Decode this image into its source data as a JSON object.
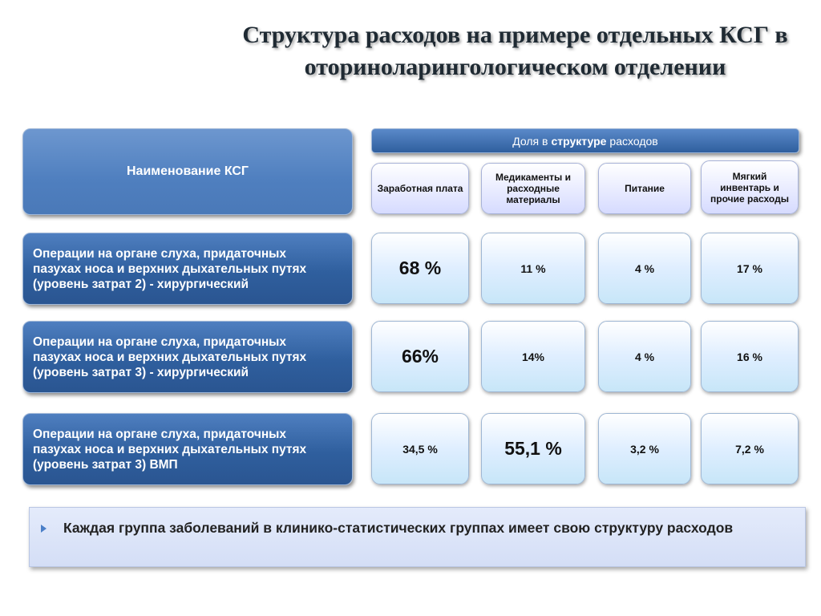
{
  "title": {
    "line1": "Структура расходов на примере отдельных КСГ в",
    "line2": "оториноларингологическом отделении"
  },
  "table": {
    "name_header": "Наименование КСГ",
    "share_header": {
      "prefix": "Доля в",
      "bold": "структуре",
      "suffix": "расходов"
    },
    "columns": [
      "Заработная плата",
      "Медикаменты и расходные материалы",
      "Питание",
      "Мягкий инвентарь и прочие расходы"
    ],
    "rows": [
      {
        "label_lines": [
          "Операции на органе слуха, придаточных",
          "пазухах носа и верхних дыхательных путях",
          "(уровень затрат 2) - хирургический"
        ],
        "values": [
          "68 %",
          "11 %",
          "4 %",
          "17 %"
        ]
      },
      {
        "label_lines": [
          "Операции на органе слуха, придаточных",
          "пазухах носа и верхних дыхательных путях",
          "(уровень затрат 3) - хирургический"
        ],
        "values": [
          "66%",
          "14%",
          "4 %",
          "16 %"
        ]
      },
      {
        "label_lines": [
          "Операции на органе слуха, придаточных",
          "пазухах носа и верхних дыхательных путях",
          "(уровень затрат 3) ВМП"
        ],
        "values": [
          "34,5 %",
          "55,1 %",
          "3,2 %",
          "7,2 %"
        ]
      }
    ]
  },
  "note": {
    "bullet_icon": "triangle-bullet-icon",
    "text": "Каждая группа заболеваний в клинико-статистических группах имеет свою структуру расходов"
  },
  "colors": {
    "header_blue": "#2f5f9e",
    "cell_light": "#c7e6f8",
    "note_bg": "#d4def6"
  }
}
